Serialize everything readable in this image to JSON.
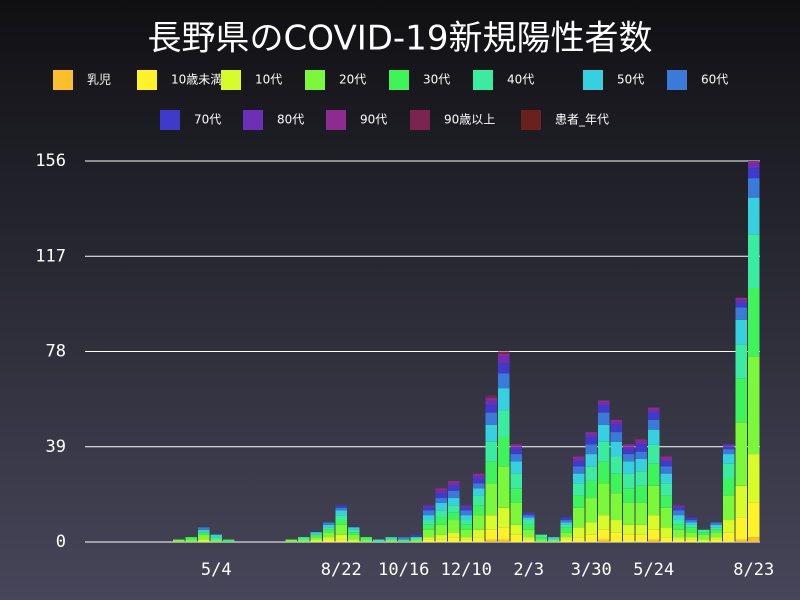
{
  "chart_data": {
    "type": "stacked-bar",
    "title": "長野県のCOVID-19新規陽性者数",
    "categories": [
      null,
      null,
      null,
      null,
      null,
      null,
      null,
      null,
      null,
      null,
      "5/4",
      null,
      null,
      null,
      null,
      null,
      null,
      null,
      null,
      null,
      "8/22",
      null,
      null,
      null,
      null,
      "10/16",
      null,
      null,
      null,
      null,
      "12/10",
      null,
      null,
      null,
      null,
      "2/3",
      null,
      null,
      null,
      null,
      "3/30",
      null,
      null,
      null,
      null,
      "5/24",
      null,
      null,
      null,
      null,
      null,
      null,
      null,
      "8/23"
    ],
    "ylim": [
      0,
      156
    ],
    "yticks": [
      0,
      39,
      78,
      117,
      156
    ],
    "grid": true,
    "series": [
      {
        "name": "乳児",
        "color": "#fbbf2a",
        "values": [
          0,
          0,
          0,
          0,
          0,
          0,
          0,
          0,
          0,
          0,
          0,
          0,
          0,
          0,
          0,
          0,
          0,
          0,
          0,
          0,
          0,
          0,
          0,
          0,
          0,
          0,
          0,
          0,
          0,
          0,
          0,
          0,
          1,
          1,
          0,
          0,
          0,
          0,
          0,
          0,
          0,
          1,
          0,
          0,
          0,
          1,
          0,
          0,
          0,
          0,
          0,
          0,
          1,
          2
        ]
      },
      {
        "name": "10歳未満",
        "color": "#fef32a",
        "values": [
          0,
          0,
          0,
          0,
          0,
          0,
          0,
          0,
          0,
          0,
          0,
          0,
          0,
          0,
          0,
          0,
          0,
          0,
          0,
          1,
          1,
          0,
          0,
          0,
          0,
          0,
          0,
          1,
          1,
          2,
          1,
          2,
          4,
          5,
          3,
          1,
          0,
          0,
          1,
          2,
          3,
          4,
          4,
          3,
          3,
          4,
          2,
          1,
          1,
          0,
          1,
          4,
          9,
          14
        ]
      },
      {
        "name": "10代",
        "color": "#d8fb2a",
        "values": [
          0,
          0,
          0,
          0,
          0,
          0,
          0,
          0,
          0,
          1,
          0,
          0,
          0,
          0,
          0,
          0,
          0,
          0,
          1,
          1,
          2,
          1,
          0,
          0,
          0,
          0,
          0,
          1,
          2,
          2,
          1,
          3,
          6,
          8,
          4,
          1,
          0,
          0,
          1,
          4,
          5,
          6,
          5,
          4,
          4,
          6,
          4,
          1,
          1,
          1,
          1,
          5,
          13,
          20
        ]
      },
      {
        "name": "20代",
        "color": "#7cf83a",
        "values": [
          0,
          0,
          0,
          0,
          0,
          0,
          0,
          1,
          1,
          2,
          1,
          0,
          0,
          0,
          0,
          0,
          1,
          1,
          1,
          2,
          4,
          2,
          1,
          0,
          1,
          0,
          1,
          3,
          4,
          5,
          3,
          6,
          13,
          17,
          9,
          3,
          1,
          1,
          2,
          8,
          10,
          13,
          11,
          9,
          9,
          12,
          8,
          3,
          2,
          2,
          2,
          10,
          26,
          40
        ]
      },
      {
        "name": "30代",
        "color": "#3ff45a",
        "values": [
          0,
          0,
          0,
          0,
          0,
          0,
          0,
          0,
          1,
          1,
          0,
          1,
          0,
          0,
          0,
          0,
          0,
          0,
          1,
          1,
          2,
          1,
          1,
          0,
          0,
          1,
          0,
          2,
          3,
          3,
          2,
          4,
          9,
          12,
          6,
          2,
          1,
          0,
          2,
          5,
          7,
          9,
          8,
          6,
          7,
          9,
          5,
          2,
          2,
          1,
          1,
          7,
          18,
          28
        ]
      },
      {
        "name": "40代",
        "color": "#3aeba0",
        "values": [
          0,
          0,
          0,
          0,
          0,
          0,
          0,
          0,
          0,
          0,
          1,
          0,
          0,
          0,
          0,
          0,
          0,
          1,
          0,
          1,
          2,
          1,
          0,
          1,
          0,
          0,
          1,
          2,
          3,
          3,
          2,
          4,
          8,
          11,
          6,
          2,
          1,
          0,
          1,
          5,
          6,
          8,
          7,
          6,
          6,
          8,
          5,
          2,
          1,
          1,
          1,
          6,
          14,
          22
        ]
      },
      {
        "name": "50代",
        "color": "#37d0de",
        "values": [
          0,
          0,
          0,
          0,
          0,
          0,
          0,
          0,
          0,
          1,
          1,
          0,
          0,
          0,
          0,
          0,
          0,
          0,
          1,
          1,
          2,
          1,
          0,
          0,
          1,
          0,
          0,
          2,
          3,
          3,
          2,
          3,
          7,
          9,
          5,
          1,
          0,
          1,
          1,
          4,
          5,
          7,
          6,
          5,
          5,
          6,
          4,
          2,
          1,
          0,
          1,
          4,
          10,
          15
        ]
      },
      {
        "name": "60代",
        "color": "#3a7ad8",
        "values": [
          0,
          0,
          0,
          0,
          0,
          0,
          0,
          0,
          0,
          1,
          0,
          0,
          0,
          0,
          0,
          0,
          0,
          0,
          0,
          1,
          1,
          0,
          0,
          0,
          0,
          1,
          0,
          2,
          2,
          3,
          2,
          2,
          5,
          6,
          3,
          1,
          0,
          0,
          1,
          3,
          4,
          5,
          4,
          3,
          3,
          4,
          3,
          2,
          1,
          0,
          1,
          2,
          5,
          8
        ]
      },
      {
        "name": "70代",
        "color": "#3f3acb",
        "values": [
          0,
          0,
          0,
          0,
          0,
          0,
          0,
          0,
          0,
          0,
          0,
          0,
          0,
          0,
          0,
          0,
          0,
          0,
          0,
          0,
          1,
          0,
          0,
          0,
          0,
          0,
          1,
          1,
          2,
          2,
          1,
          2,
          3,
          4,
          2,
          1,
          0,
          0,
          1,
          2,
          3,
          3,
          3,
          2,
          3,
          3,
          2,
          1,
          1,
          0,
          0,
          1,
          2,
          4
        ]
      },
      {
        "name": "80代",
        "color": "#6c2fb5",
        "values": [
          0,
          0,
          0,
          0,
          0,
          0,
          0,
          0,
          0,
          0,
          0,
          0,
          0,
          0,
          0,
          0,
          0,
          0,
          0,
          0,
          0,
          0,
          0,
          0,
          0,
          0,
          0,
          1,
          1,
          1,
          1,
          1,
          2,
          3,
          1,
          0,
          0,
          0,
          0,
          1,
          1,
          1,
          1,
          1,
          1,
          1,
          1,
          1,
          0,
          0,
          0,
          1,
          1,
          2
        ]
      },
      {
        "name": "90代",
        "color": "#8f2a8e",
        "values": [
          0,
          0,
          0,
          0,
          0,
          0,
          0,
          0,
          0,
          0,
          0,
          0,
          0,
          0,
          0,
          0,
          0,
          0,
          0,
          0,
          0,
          0,
          0,
          0,
          0,
          0,
          0,
          0,
          1,
          1,
          0,
          1,
          1,
          1,
          1,
          0,
          0,
          0,
          0,
          1,
          1,
          1,
          1,
          1,
          1,
          1,
          1,
          0,
          0,
          0,
          0,
          0,
          1,
          1
        ]
      },
      {
        "name": "90歳以上",
        "color": "#7a2550",
        "values": [
          0,
          0,
          0,
          0,
          0,
          0,
          0,
          0,
          0,
          0,
          0,
          0,
          0,
          0,
          0,
          0,
          0,
          0,
          0,
          0,
          0,
          0,
          0,
          0,
          0,
          0,
          0,
          0,
          0,
          0,
          0,
          0,
          1,
          1,
          0,
          0,
          0,
          0,
          0,
          0,
          0,
          0,
          0,
          0,
          0,
          0,
          0,
          0,
          0,
          0,
          0,
          0,
          0,
          0
        ]
      },
      {
        "name": "患者_年代",
        "color": "#6b2020",
        "values": [
          0,
          0,
          0,
          0,
          0,
          0,
          0,
          0,
          0,
          0,
          0,
          0,
          0,
          0,
          0,
          0,
          0,
          0,
          0,
          0,
          0,
          0,
          0,
          0,
          0,
          0,
          0,
          0,
          0,
          0,
          0,
          0,
          0,
          0,
          0,
          0,
          0,
          0,
          0,
          0,
          0,
          0,
          0,
          0,
          0,
          0,
          0,
          0,
          0,
          0,
          0,
          0,
          0,
          0
        ]
      }
    ]
  }
}
